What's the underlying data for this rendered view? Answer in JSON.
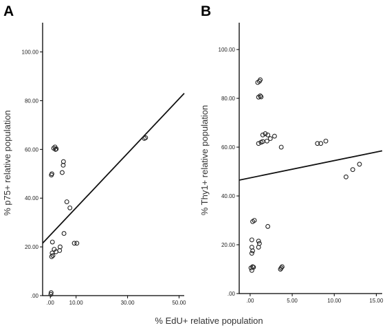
{
  "chart_data": [
    {
      "panel": "A",
      "type": "scatter",
      "title": "",
      "xlabel": "% EdU+ relative population",
      "ylabel": "% p75+ relative population",
      "xlim": [
        -3,
        52
      ],
      "ylim": [
        0,
        112
      ],
      "x_ticks": [
        0,
        10,
        30,
        50
      ],
      "x_tick_labels": [
        ".00",
        "10.00",
        "30.00",
        "50.00"
      ],
      "y_ticks": [
        0,
        20,
        40,
        60,
        80,
        100
      ],
      "y_tick_labels": [
        ".00",
        "20.00",
        "40.00",
        "60.00",
        "80.00",
        "100.00"
      ],
      "grid": false,
      "fit_line": {
        "x": [
          -3,
          52
        ],
        "y": [
          21.5,
          83
        ]
      },
      "points": [
        {
          "x": 0.2,
          "y": 0.5
        },
        {
          "x": 0.3,
          "y": 1.2
        },
        {
          "x": 0.4,
          "y": 49.5
        },
        {
          "x": 0.6,
          "y": 50
        },
        {
          "x": 1.3,
          "y": 60.5
        },
        {
          "x": 1.8,
          "y": 61
        },
        {
          "x": 2.3,
          "y": 60.2
        },
        {
          "x": 2.0,
          "y": 60
        },
        {
          "x": 0.8,
          "y": 22
        },
        {
          "x": 1.5,
          "y": 19
        },
        {
          "x": 0.7,
          "y": 17.5
        },
        {
          "x": 1.0,
          "y": 16.5
        },
        {
          "x": 0.5,
          "y": 16
        },
        {
          "x": 2.2,
          "y": 18
        },
        {
          "x": 3.8,
          "y": 20
        },
        {
          "x": 3.6,
          "y": 18.5
        },
        {
          "x": 4.6,
          "y": 50.5
        },
        {
          "x": 5.0,
          "y": 53.5
        },
        {
          "x": 5.1,
          "y": 55
        },
        {
          "x": 5.3,
          "y": 25.5
        },
        {
          "x": 6.4,
          "y": 38.5
        },
        {
          "x": 7.6,
          "y": 36
        },
        {
          "x": 9.3,
          "y": 21.5
        },
        {
          "x": 10.3,
          "y": 21.5
        },
        {
          "x": 36.5,
          "y": 64.5
        },
        {
          "x": 37.0,
          "y": 64.8
        }
      ]
    },
    {
      "panel": "B",
      "type": "scatter",
      "title": "",
      "xlabel": "",
      "ylabel": "% Thy1+ relative population",
      "xlim": [
        -1.3,
        15.7
      ],
      "ylim": [
        0,
        111
      ],
      "x_ticks": [
        0,
        5,
        10,
        15
      ],
      "x_tick_labels": [
        ".00",
        "5.00",
        "10.00",
        "15.00"
      ],
      "y_ticks": [
        0,
        20,
        40,
        60,
        80,
        100
      ],
      "y_tick_labels": [
        ".00",
        "20.00",
        "40.00",
        "60.00",
        "80.00",
        "100.00"
      ],
      "grid": false,
      "fit_line": {
        "x": [
          -1.3,
          15.7
        ],
        "y": [
          46.5,
          58.5
        ]
      },
      "points": [
        {
          "x": 0.1,
          "y": 10.5
        },
        {
          "x": 0.2,
          "y": 9.5
        },
        {
          "x": 0.3,
          "y": 11
        },
        {
          "x": 0.4,
          "y": 10.8
        },
        {
          "x": 0.2,
          "y": 16.5
        },
        {
          "x": 0.3,
          "y": 17.5
        },
        {
          "x": 0.2,
          "y": 19
        },
        {
          "x": 0.2,
          "y": 22
        },
        {
          "x": 0.3,
          "y": 29.5
        },
        {
          "x": 0.5,
          "y": 30
        },
        {
          "x": 1.0,
          "y": 19
        },
        {
          "x": 1.1,
          "y": 20.5
        },
        {
          "x": 1.0,
          "y": 21.5
        },
        {
          "x": 2.1,
          "y": 27.5
        },
        {
          "x": 3.6,
          "y": 10
        },
        {
          "x": 3.7,
          "y": 10.5
        },
        {
          "x": 3.8,
          "y": 11
        },
        {
          "x": 0.9,
          "y": 86.5
        },
        {
          "x": 1.1,
          "y": 87
        },
        {
          "x": 1.2,
          "y": 87.6
        },
        {
          "x": 1.0,
          "y": 80.5
        },
        {
          "x": 1.2,
          "y": 81
        },
        {
          "x": 1.3,
          "y": 80.6
        },
        {
          "x": 1.0,
          "y": 61.5
        },
        {
          "x": 1.3,
          "y": 62
        },
        {
          "x": 1.5,
          "y": 62.3
        },
        {
          "x": 1.5,
          "y": 65
        },
        {
          "x": 1.8,
          "y": 65.5
        },
        {
          "x": 2.1,
          "y": 65
        },
        {
          "x": 2.0,
          "y": 62.5
        },
        {
          "x": 2.4,
          "y": 63.5
        },
        {
          "x": 2.9,
          "y": 64.5
        },
        {
          "x": 3.7,
          "y": 60
        },
        {
          "x": 8.0,
          "y": 61.5
        },
        {
          "x": 8.4,
          "y": 61.5
        },
        {
          "x": 9.0,
          "y": 62.5
        },
        {
          "x": 11.4,
          "y": 47.8
        },
        {
          "x": 12.2,
          "y": 50.8
        },
        {
          "x": 13.0,
          "y": 53
        }
      ]
    }
  ]
}
